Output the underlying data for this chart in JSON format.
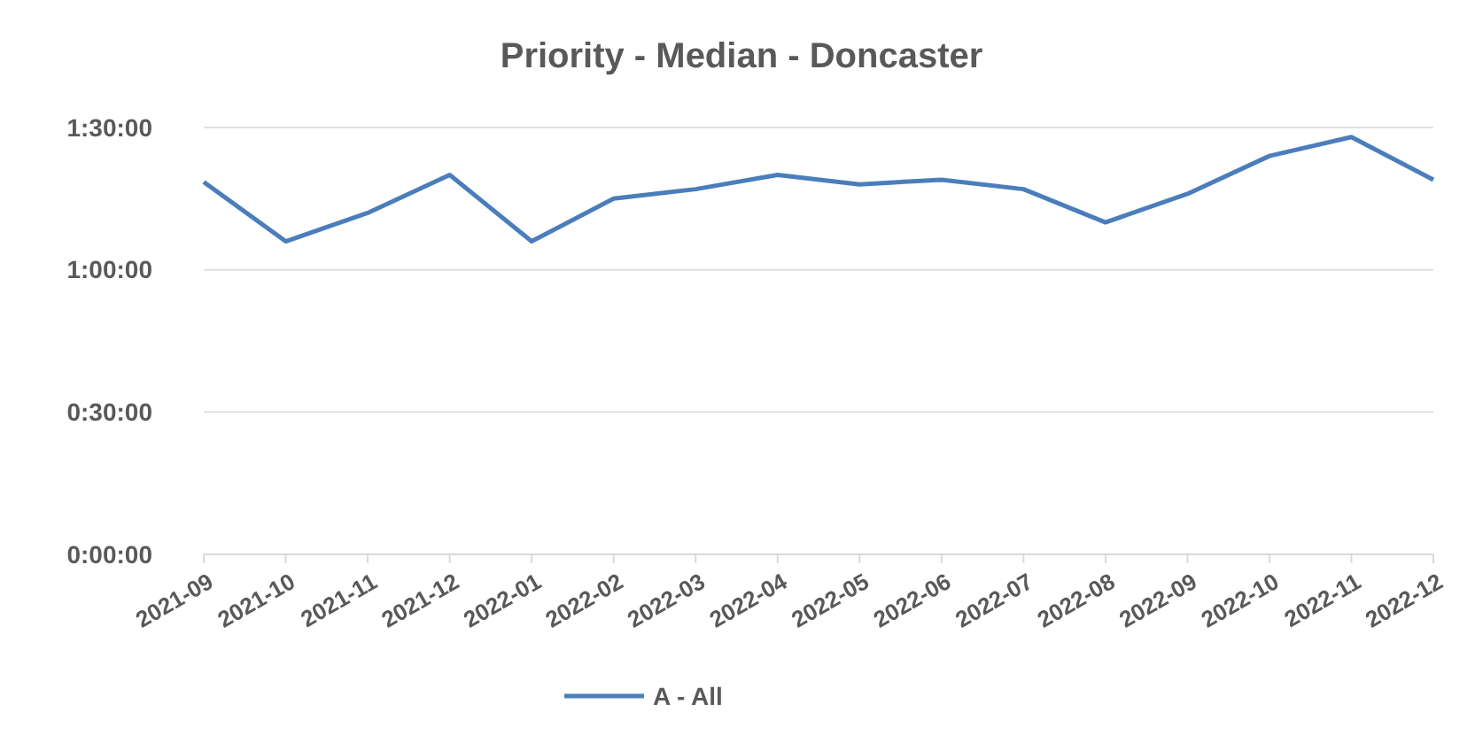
{
  "chart_data": {
    "type": "line",
    "title": "Priority - Median - Doncaster",
    "categories": [
      "2021-09",
      "2021-10",
      "2021-11",
      "2021-12",
      "2022-01",
      "2022-02",
      "2022-03",
      "2022-04",
      "2022-05",
      "2022-06",
      "2022-07",
      "2022-08",
      "2022-09",
      "2022-10",
      "2022-11",
      "2022-12"
    ],
    "series": [
      {
        "name": "A - All",
        "color": "#4a7ebb",
        "values": [
          78.5,
          66,
          72,
          80,
          66,
          75,
          77,
          80,
          78,
          79,
          77,
          70,
          76,
          84,
          88,
          79
        ]
      }
    ],
    "ylim": [
      0,
      90
    ],
    "yticks": [
      {
        "value": 0,
        "label": "0:00:00"
      },
      {
        "value": 30,
        "label": "0:30:00"
      },
      {
        "value": 60,
        "label": "1:00:00"
      },
      {
        "value": 90,
        "label": "1:30:00"
      }
    ],
    "grid": "y",
    "legend": "bottom",
    "marker": "none",
    "line_style": "solid"
  }
}
